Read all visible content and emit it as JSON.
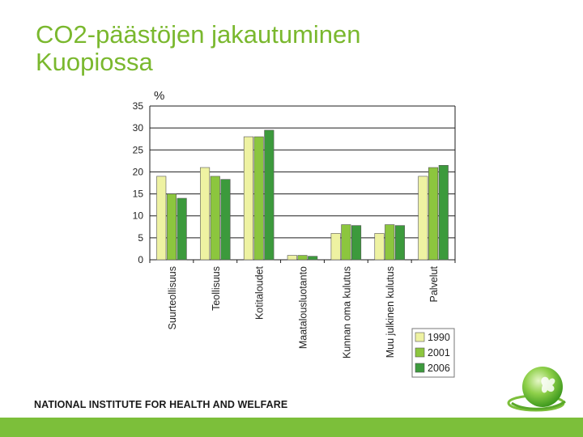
{
  "slide": {
    "title_line1": "CO2-päästöjen jakautuminen",
    "title_line2": "Kuopiossa",
    "footer": "NATIONAL INSTITUTE FOR HEALTH AND WELFARE"
  },
  "colors": {
    "title": "#7ab82e",
    "bar": "#7cbf3a",
    "series": [
      "#eef2a2",
      "#8cc63e",
      "#3c9a3c"
    ]
  },
  "icons": {
    "logo": "globe-leaf-icon"
  },
  "chart_data": {
    "type": "bar",
    "title": "",
    "xlabel": "",
    "ylabel": "%",
    "ylim": [
      0,
      35
    ],
    "yticks": [
      0,
      5,
      10,
      15,
      20,
      25,
      30,
      35
    ],
    "grid": true,
    "legend_position": "bottom-right",
    "categories": [
      "Suurteollisuus",
      "Teollisuus",
      "Kotitaloudet",
      "Maatalousluotanto",
      "Kunnan oma kulutus",
      "Muu julkinen kulutus",
      "Palvelut"
    ],
    "series": [
      {
        "name": "1990",
        "values": [
          19,
          21,
          28,
          1,
          6,
          6,
          19
        ]
      },
      {
        "name": "2001",
        "values": [
          15,
          19,
          28,
          1,
          8,
          8,
          21
        ]
      },
      {
        "name": "2006",
        "values": [
          14,
          18.3,
          29.5,
          0.8,
          7.8,
          7.8,
          21.5
        ]
      }
    ]
  }
}
